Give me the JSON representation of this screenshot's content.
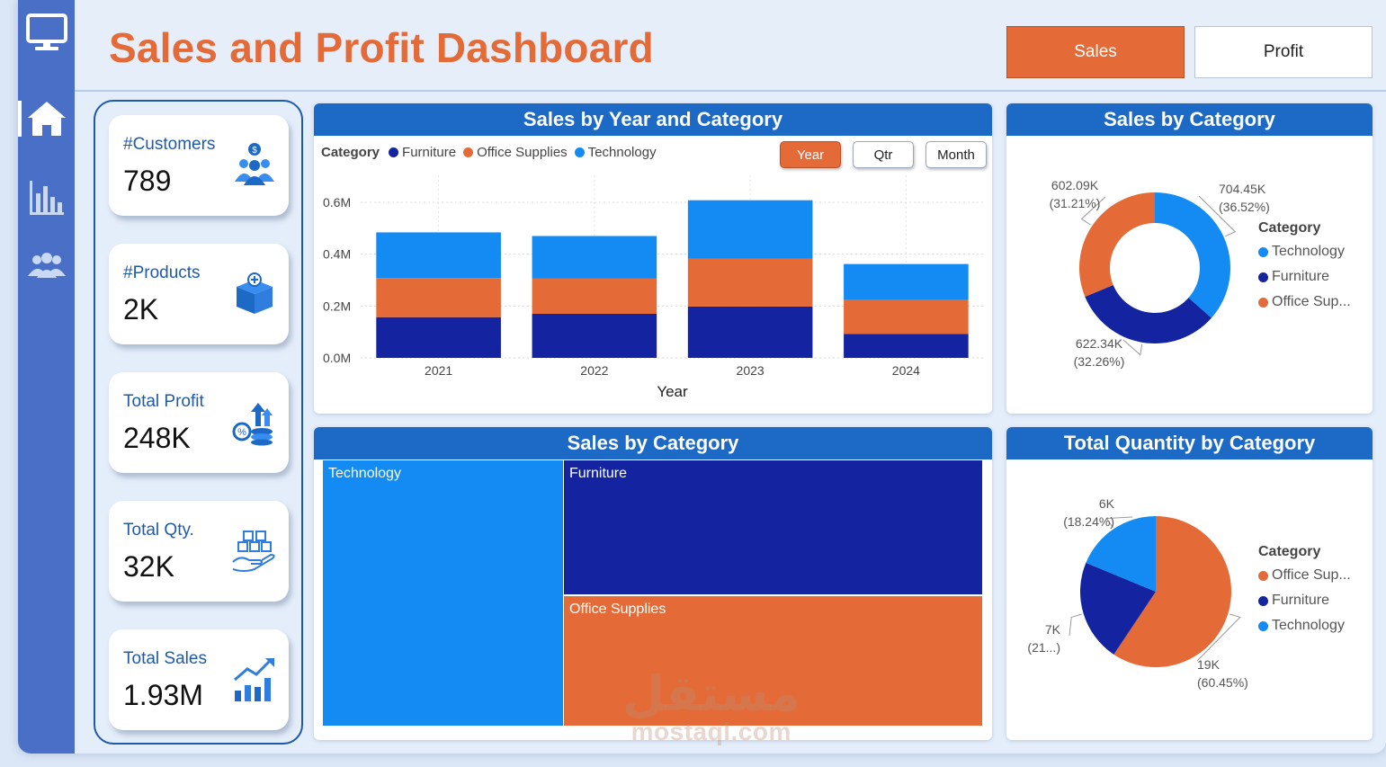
{
  "header": {
    "title": "Sales and Profit Dashboard",
    "sales_button": "Sales",
    "profit_button": "Profit"
  },
  "sidebar": {
    "items": [
      "monitor-icon",
      "home-icon",
      "bar-chart-icon",
      "people-icon"
    ]
  },
  "kpis": [
    {
      "label": "#Customers",
      "value": "789",
      "icon": "customers-icon"
    },
    {
      "label": "#Products",
      "value": "2K",
      "icon": "product-box-icon"
    },
    {
      "label": "Total Profit",
      "value": "248K",
      "icon": "profit-coins-icon"
    },
    {
      "label": "Total Qty.",
      "value": "32K",
      "icon": "quantity-boxes-icon"
    },
    {
      "label": "Total Sales",
      "value": "1.93M",
      "icon": "sales-growth-icon"
    }
  ],
  "colors": {
    "furniture": "#1424a0",
    "office_supplies": "#e46b37",
    "technology": "#138bf2",
    "brand": "#1c6ac5",
    "accent": "#e46b37"
  },
  "bar_panel": {
    "title": "Sales by Year and Category",
    "legend_title": "Category",
    "legend": [
      "Furniture",
      "Office Supplies",
      "Technology"
    ],
    "buttons": {
      "year": "Year",
      "qtr": "Qtr",
      "month": "Month"
    }
  },
  "donut_panel": {
    "title": "Sales by Category",
    "legend_title": "Category",
    "legend": [
      "Technology",
      "Furniture",
      "Office Sup..."
    ],
    "labels": [
      {
        "value": "704.45K",
        "pct": "(36.52%)"
      },
      {
        "value": "622.34K",
        "pct": "(32.26%)"
      },
      {
        "value": "602.09K",
        "pct": "(31.21%)"
      }
    ]
  },
  "treemap_panel": {
    "title": "Sales by Category",
    "cells": [
      "Technology",
      "Furniture",
      "Office Supplies"
    ]
  },
  "pie_panel": {
    "title": "Total Quantity by Category",
    "legend_title": "Category",
    "legend": [
      "Office Sup...",
      "Furniture",
      "Technology"
    ],
    "labels": [
      {
        "value": "19K",
        "pct": "(60.45%)"
      },
      {
        "value": "7K",
        "pct": "(21...)"
      },
      {
        "value": "6K",
        "pct": "(18.24%)"
      }
    ]
  },
  "watermark": {
    "arabic": "مستقل",
    "latin": "mostaql.com"
  },
  "chart_data": [
    {
      "type": "bar",
      "stacked": true,
      "title": "Sales by Year and Category",
      "xlabel": "Year",
      "ylabel": "",
      "categories": [
        "2021",
        "2022",
        "2023",
        "2024"
      ],
      "series": [
        {
          "name": "Furniture",
          "values": [
            0.157,
            0.17,
            0.198,
            0.092
          ]
        },
        {
          "name": "Office Supplies",
          "values": [
            0.151,
            0.137,
            0.184,
            0.131
          ]
        },
        {
          "name": "Technology",
          "values": [
            0.176,
            0.163,
            0.226,
            0.139
          ]
        }
      ],
      "yticks": [
        "0.0M",
        "0.2M",
        "0.4M",
        "0.6M"
      ],
      "ylim": [
        0,
        0.6
      ],
      "grid": true,
      "legend": "top-left"
    },
    {
      "type": "pie",
      "donut": true,
      "title": "Sales by Category",
      "categories": [
        "Technology",
        "Furniture",
        "Office Supplies"
      ],
      "values": [
        704.45,
        622.34,
        602.09
      ],
      "percents": [
        36.52,
        32.26,
        31.21
      ],
      "legend": "right"
    },
    {
      "type": "treemap",
      "title": "Sales by Category",
      "categories": [
        "Technology",
        "Furniture",
        "Office Supplies"
      ],
      "values": [
        704.45,
        622.34,
        602.09
      ]
    },
    {
      "type": "pie",
      "title": "Total Quantity by Category",
      "categories": [
        "Office Supplies",
        "Furniture",
        "Technology"
      ],
      "values": [
        19,
        7,
        6
      ],
      "percents": [
        60.45,
        21.31,
        18.24
      ],
      "legend": "right"
    }
  ]
}
